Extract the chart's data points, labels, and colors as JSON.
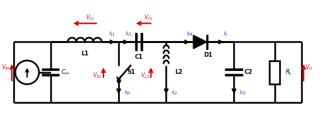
{
  "bg_color": "#ffffff",
  "line_color": "#000000",
  "red_color": "#dd0000",
  "blue_color": "#0000cc",
  "lw": 1.8,
  "figsize": [
    4.8,
    2.02
  ],
  "dpi": 100,
  "xlim": [
    0,
    96
  ],
  "ylim": [
    0,
    40
  ]
}
